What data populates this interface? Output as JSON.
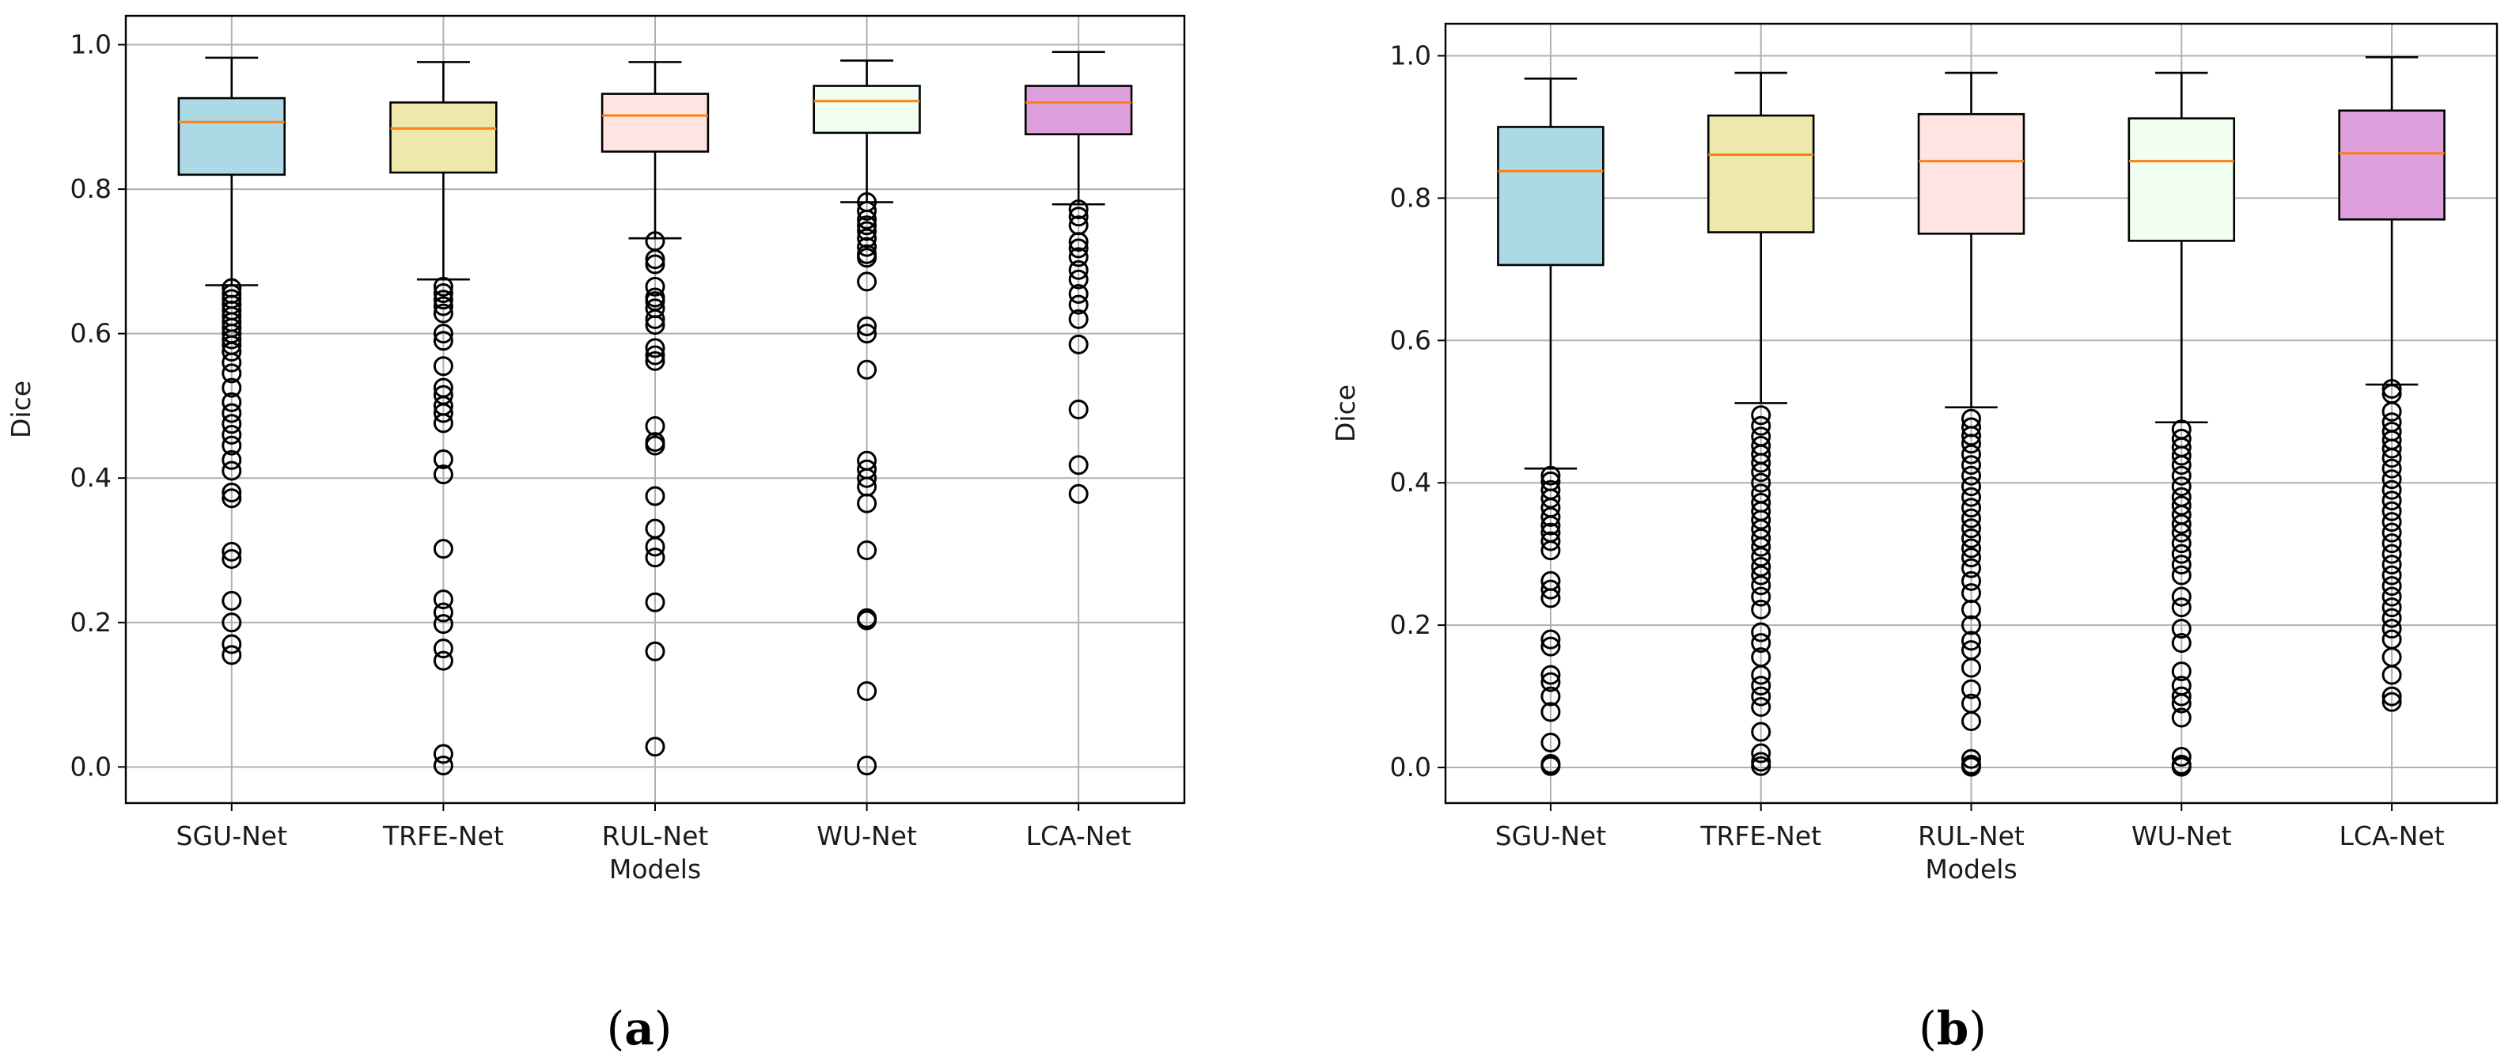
{
  "chart_data": [
    {
      "panel_label": "a",
      "type": "box",
      "title": "",
      "xlabel": "Models",
      "ylabel": "Dice",
      "ylim": [
        -0.05,
        1.04
      ],
      "yticks": [
        0.0,
        0.2,
        0.4,
        0.6,
        0.8,
        1.0
      ],
      "ytick_labels": [
        "0.0",
        "0.2",
        "0.4",
        "0.6",
        "0.8",
        "1.0"
      ],
      "grid": true,
      "median_color": "#ff7f0e",
      "categories": [
        "SGU-Net",
        "TRFE-Net",
        "RUL-Net",
        "WU-Net",
        "LCA-Net"
      ],
      "boxes": [
        {
          "name": "SGU-Net",
          "color": "#add8e6",
          "whislo": 0.667,
          "q1": 0.82,
          "med": 0.893,
          "q3": 0.926,
          "whishi": 0.982,
          "fliers": [
            0.663,
            0.655,
            0.648,
            0.64,
            0.632,
            0.624,
            0.616,
            0.608,
            0.6,
            0.592,
            0.584,
            0.575,
            0.56,
            0.545,
            0.525,
            0.505,
            0.49,
            0.475,
            0.46,
            0.445,
            0.425,
            0.41,
            0.38,
            0.372,
            0.298,
            0.288,
            0.23,
            0.2,
            0.17,
            0.155
          ]
        },
        {
          "name": "TRFE-Net",
          "color": "#eee8aa",
          "whislo": 0.675,
          "q1": 0.823,
          "med": 0.884,
          "q3": 0.92,
          "whishi": 0.976,
          "fliers": [
            0.665,
            0.656,
            0.647,
            0.638,
            0.628,
            0.6,
            0.59,
            0.555,
            0.525,
            0.515,
            0.5,
            0.49,
            0.476,
            0.426,
            0.405,
            0.302,
            0.232,
            0.214,
            0.198,
            0.164,
            0.147,
            0.018,
            0.002
          ]
        },
        {
          "name": "RUL-Net",
          "color": "#ffe4e1",
          "whislo": 0.732,
          "q1": 0.852,
          "med": 0.902,
          "q3": 0.932,
          "whishi": 0.976,
          "fliers": [
            0.728,
            0.703,
            0.696,
            0.665,
            0.65,
            0.645,
            0.635,
            0.62,
            0.612,
            0.58,
            0.57,
            0.562,
            0.472,
            0.45,
            0.445,
            0.375,
            0.33,
            0.305,
            0.29,
            0.228,
            0.16,
            0.028
          ]
        },
        {
          "name": "WU-Net",
          "color": "#f0fff0",
          "whislo": 0.782,
          "q1": 0.878,
          "med": 0.922,
          "q3": 0.943,
          "whishi": 0.978,
          "fliers": [
            0.782,
            0.77,
            0.758,
            0.75,
            0.742,
            0.732,
            0.72,
            0.71,
            0.705,
            0.672,
            0.61,
            0.6,
            0.55,
            0.424,
            0.412,
            0.4,
            0.388,
            0.365,
            0.3,
            0.206,
            0.203,
            0.105,
            0.002
          ]
        },
        {
          "name": "LCA-Net",
          "color": "#dda0dd",
          "whislo": 0.779,
          "q1": 0.876,
          "med": 0.92,
          "q3": 0.943,
          "whishi": 0.99,
          "fliers": [
            0.772,
            0.762,
            0.75,
            0.727,
            0.718,
            0.706,
            0.688,
            0.675,
            0.655,
            0.64,
            0.62,
            0.585,
            0.495,
            0.418,
            0.378
          ]
        }
      ]
    },
    {
      "panel_label": "b",
      "type": "box",
      "title": "",
      "xlabel": "Models",
      "ylabel": "Dice",
      "ylim": [
        -0.05,
        1.045
      ],
      "yticks": [
        0.0,
        0.2,
        0.4,
        0.6,
        0.8,
        1.0
      ],
      "ytick_labels": [
        "0.0",
        "0.2",
        "0.4",
        "0.6",
        "0.8",
        "1.0"
      ],
      "grid": true,
      "median_color": "#ff7f0e",
      "categories": [
        "SGU-Net",
        "TRFE-Net",
        "RUL-Net",
        "WU-Net",
        "LCA-Net"
      ],
      "boxes": [
        {
          "name": "SGU-Net",
          "color": "#add8e6",
          "whislo": 0.42,
          "q1": 0.706,
          "med": 0.838,
          "q3": 0.9,
          "whishi": 0.968,
          "fliers": [
            0.41,
            0.402,
            0.39,
            0.378,
            0.365,
            0.352,
            0.34,
            0.33,
            0.318,
            0.305,
            0.262,
            0.25,
            0.238,
            0.18,
            0.17,
            0.13,
            0.12,
            0.1,
            0.078,
            0.035,
            0.005,
            0.002
          ]
        },
        {
          "name": "TRFE-Net",
          "color": "#eee8aa",
          "whislo": 0.512,
          "q1": 0.752,
          "med": 0.861,
          "q3": 0.916,
          "whishi": 0.976,
          "fliers": [
            0.495,
            0.48,
            0.465,
            0.452,
            0.44,
            0.428,
            0.415,
            0.4,
            0.385,
            0.372,
            0.36,
            0.348,
            0.335,
            0.322,
            0.31,
            0.296,
            0.282,
            0.27,
            0.256,
            0.24,
            0.222,
            0.19,
            0.175,
            0.155,
            0.13,
            0.115,
            0.1,
            0.085,
            0.05,
            0.02,
            0.008,
            0.002
          ]
        },
        {
          "name": "RUL-Net",
          "color": "#ffe4e1",
          "whislo": 0.506,
          "q1": 0.75,
          "med": 0.852,
          "q3": 0.918,
          "whishi": 0.976,
          "fliers": [
            0.49,
            0.478,
            0.466,
            0.455,
            0.44,
            0.425,
            0.41,
            0.395,
            0.38,
            0.365,
            0.35,
            0.336,
            0.322,
            0.308,
            0.295,
            0.28,
            0.262,
            0.245,
            0.222,
            0.2,
            0.178,
            0.165,
            0.14,
            0.11,
            0.09,
            0.065,
            0.012,
            0.004,
            0.001
          ]
        },
        {
          "name": "WU-Net",
          "color": "#f0fff0",
          "whislo": 0.485,
          "q1": 0.74,
          "med": 0.852,
          "q3": 0.912,
          "whishi": 0.976,
          "fliers": [
            0.475,
            0.462,
            0.45,
            0.438,
            0.425,
            0.41,
            0.395,
            0.38,
            0.368,
            0.355,
            0.342,
            0.33,
            0.315,
            0.3,
            0.285,
            0.27,
            0.24,
            0.225,
            0.195,
            0.175,
            0.135,
            0.115,
            0.1,
            0.09,
            0.07,
            0.015,
            0.004,
            0.001
          ]
        },
        {
          "name": "LCA-Net",
          "color": "#dda0dd",
          "whislo": 0.538,
          "q1": 0.77,
          "med": 0.863,
          "q3": 0.923,
          "whishi": 0.998,
          "fliers": [
            0.532,
            0.525,
            0.5,
            0.485,
            0.472,
            0.46,
            0.448,
            0.435,
            0.42,
            0.405,
            0.39,
            0.375,
            0.36,
            0.345,
            0.33,
            0.315,
            0.3,
            0.285,
            0.27,
            0.255,
            0.24,
            0.225,
            0.21,
            0.195,
            0.18,
            0.155,
            0.13,
            0.1,
            0.092
          ]
        }
      ]
    }
  ]
}
